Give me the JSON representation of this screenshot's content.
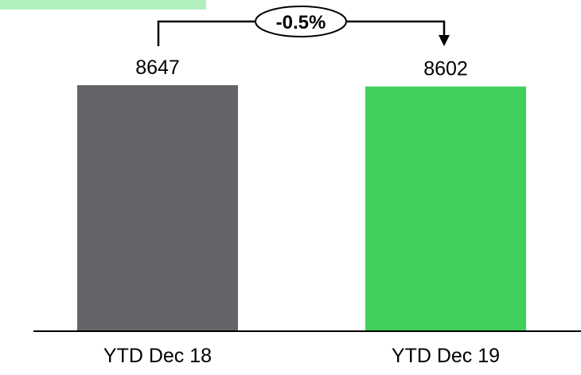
{
  "chart_data": {
    "type": "bar",
    "categories": [
      "YTD Dec 18",
      "YTD Dec 19"
    ],
    "values": [
      8647,
      8602
    ],
    "data_labels": [
      "8647",
      "8602"
    ],
    "bar_colors": [
      "#636569",
      "#41cf5c"
    ],
    "change_label": "-0.5%",
    "title": "",
    "xlabel": "",
    "ylabel": "",
    "grid": false
  },
  "colors": {
    "header_band": "#b2efbe",
    "baseline": "#000000",
    "text": "#000000"
  }
}
